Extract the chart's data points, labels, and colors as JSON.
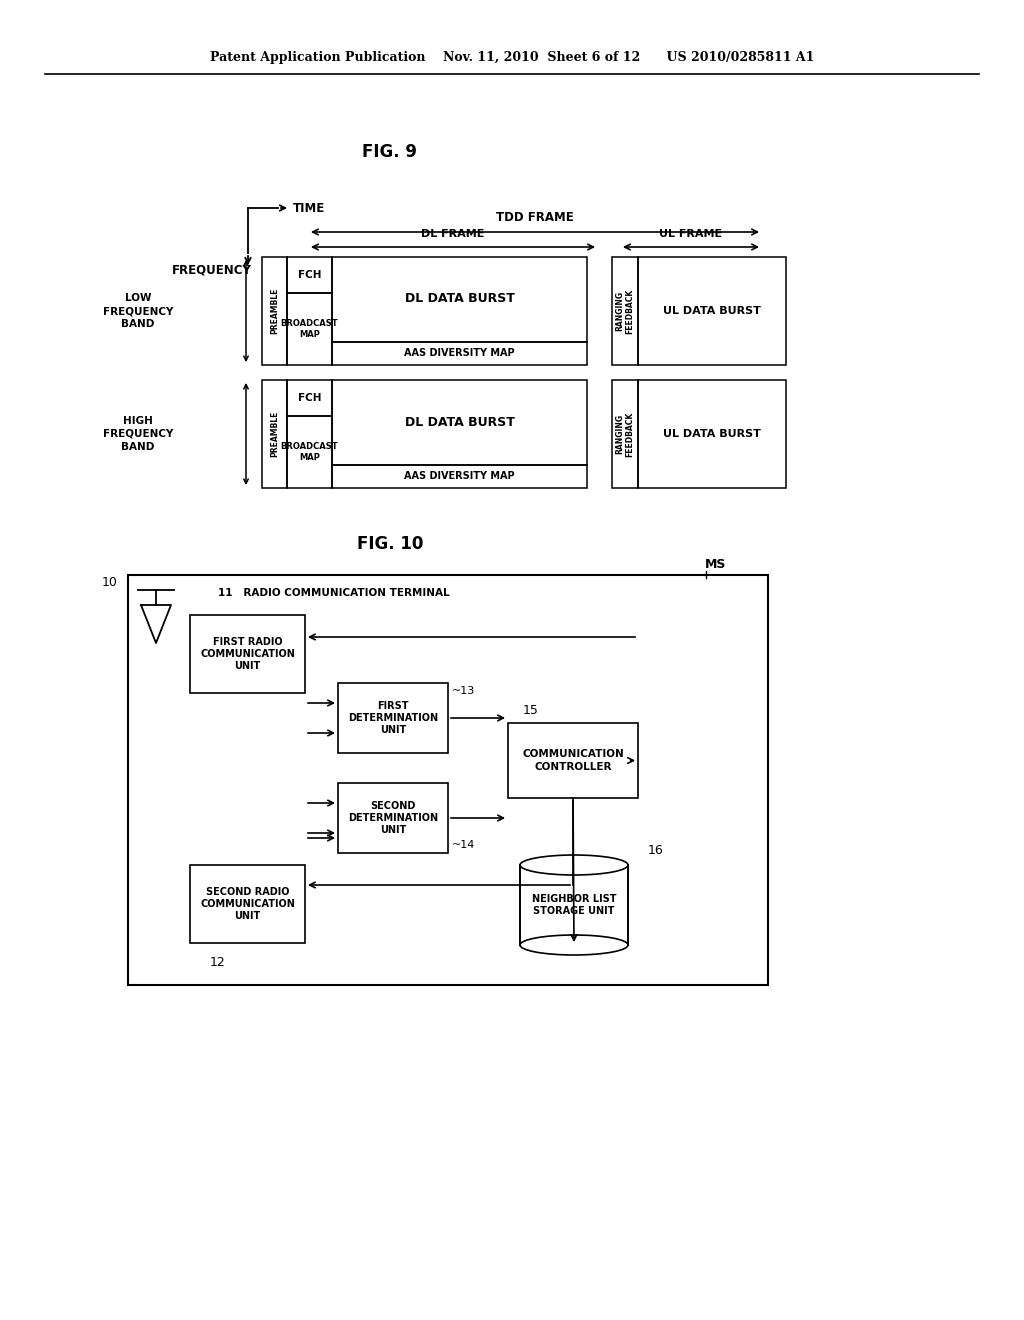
{
  "header": "Patent Application Publication    Nov. 11, 2010  Sheet 6 of 12      US 2010/0285811 A1",
  "fig9_title": "FIG. 9",
  "fig10_title": "FIG. 10",
  "labels": {
    "time": "TIME",
    "frequency": "FREQUENCY",
    "tdd_frame": "TDD FRAME",
    "dl_frame": "DL FRAME",
    "ul_frame": "UL FRAME",
    "low_band": "LOW\nFREQUENCY\nBAND",
    "high_band": "HIGH\nFREQUENCY\nBAND",
    "preamble": "PREAMBLE",
    "fch": "FCH",
    "broadcast_map": "BROADCAST\nMAP",
    "dl_data_burst": "DL DATA BURST",
    "aas_diversity": "AAS DIVERSITY MAP",
    "ranging_feedback": "RANGING\nFEEDBACK",
    "ul_data_burst": "UL DATA BURST",
    "ms": "MS",
    "n10": "10",
    "n11": "11",
    "radio_comm_term": "RADIO COMMUNICATION TERMINAL",
    "first_radio": "FIRST RADIO\nCOMMUNICATION\nUNIT",
    "second_radio": "SECOND RADIO\nCOMMUNICATION\nUNIT",
    "n12": "12",
    "first_det": "FIRST\nDETERMINATION\nUNIT",
    "n13": "~13",
    "second_det": "SECOND\nDETERMINATION\nUNIT",
    "n14": "~14",
    "comm_ctrl": "COMMUNICATION\nCONTROLLER",
    "n15": "15",
    "neighbor_list": "NEIGHBOR LIST\nSTORAGE UNIT",
    "n16": "16"
  }
}
